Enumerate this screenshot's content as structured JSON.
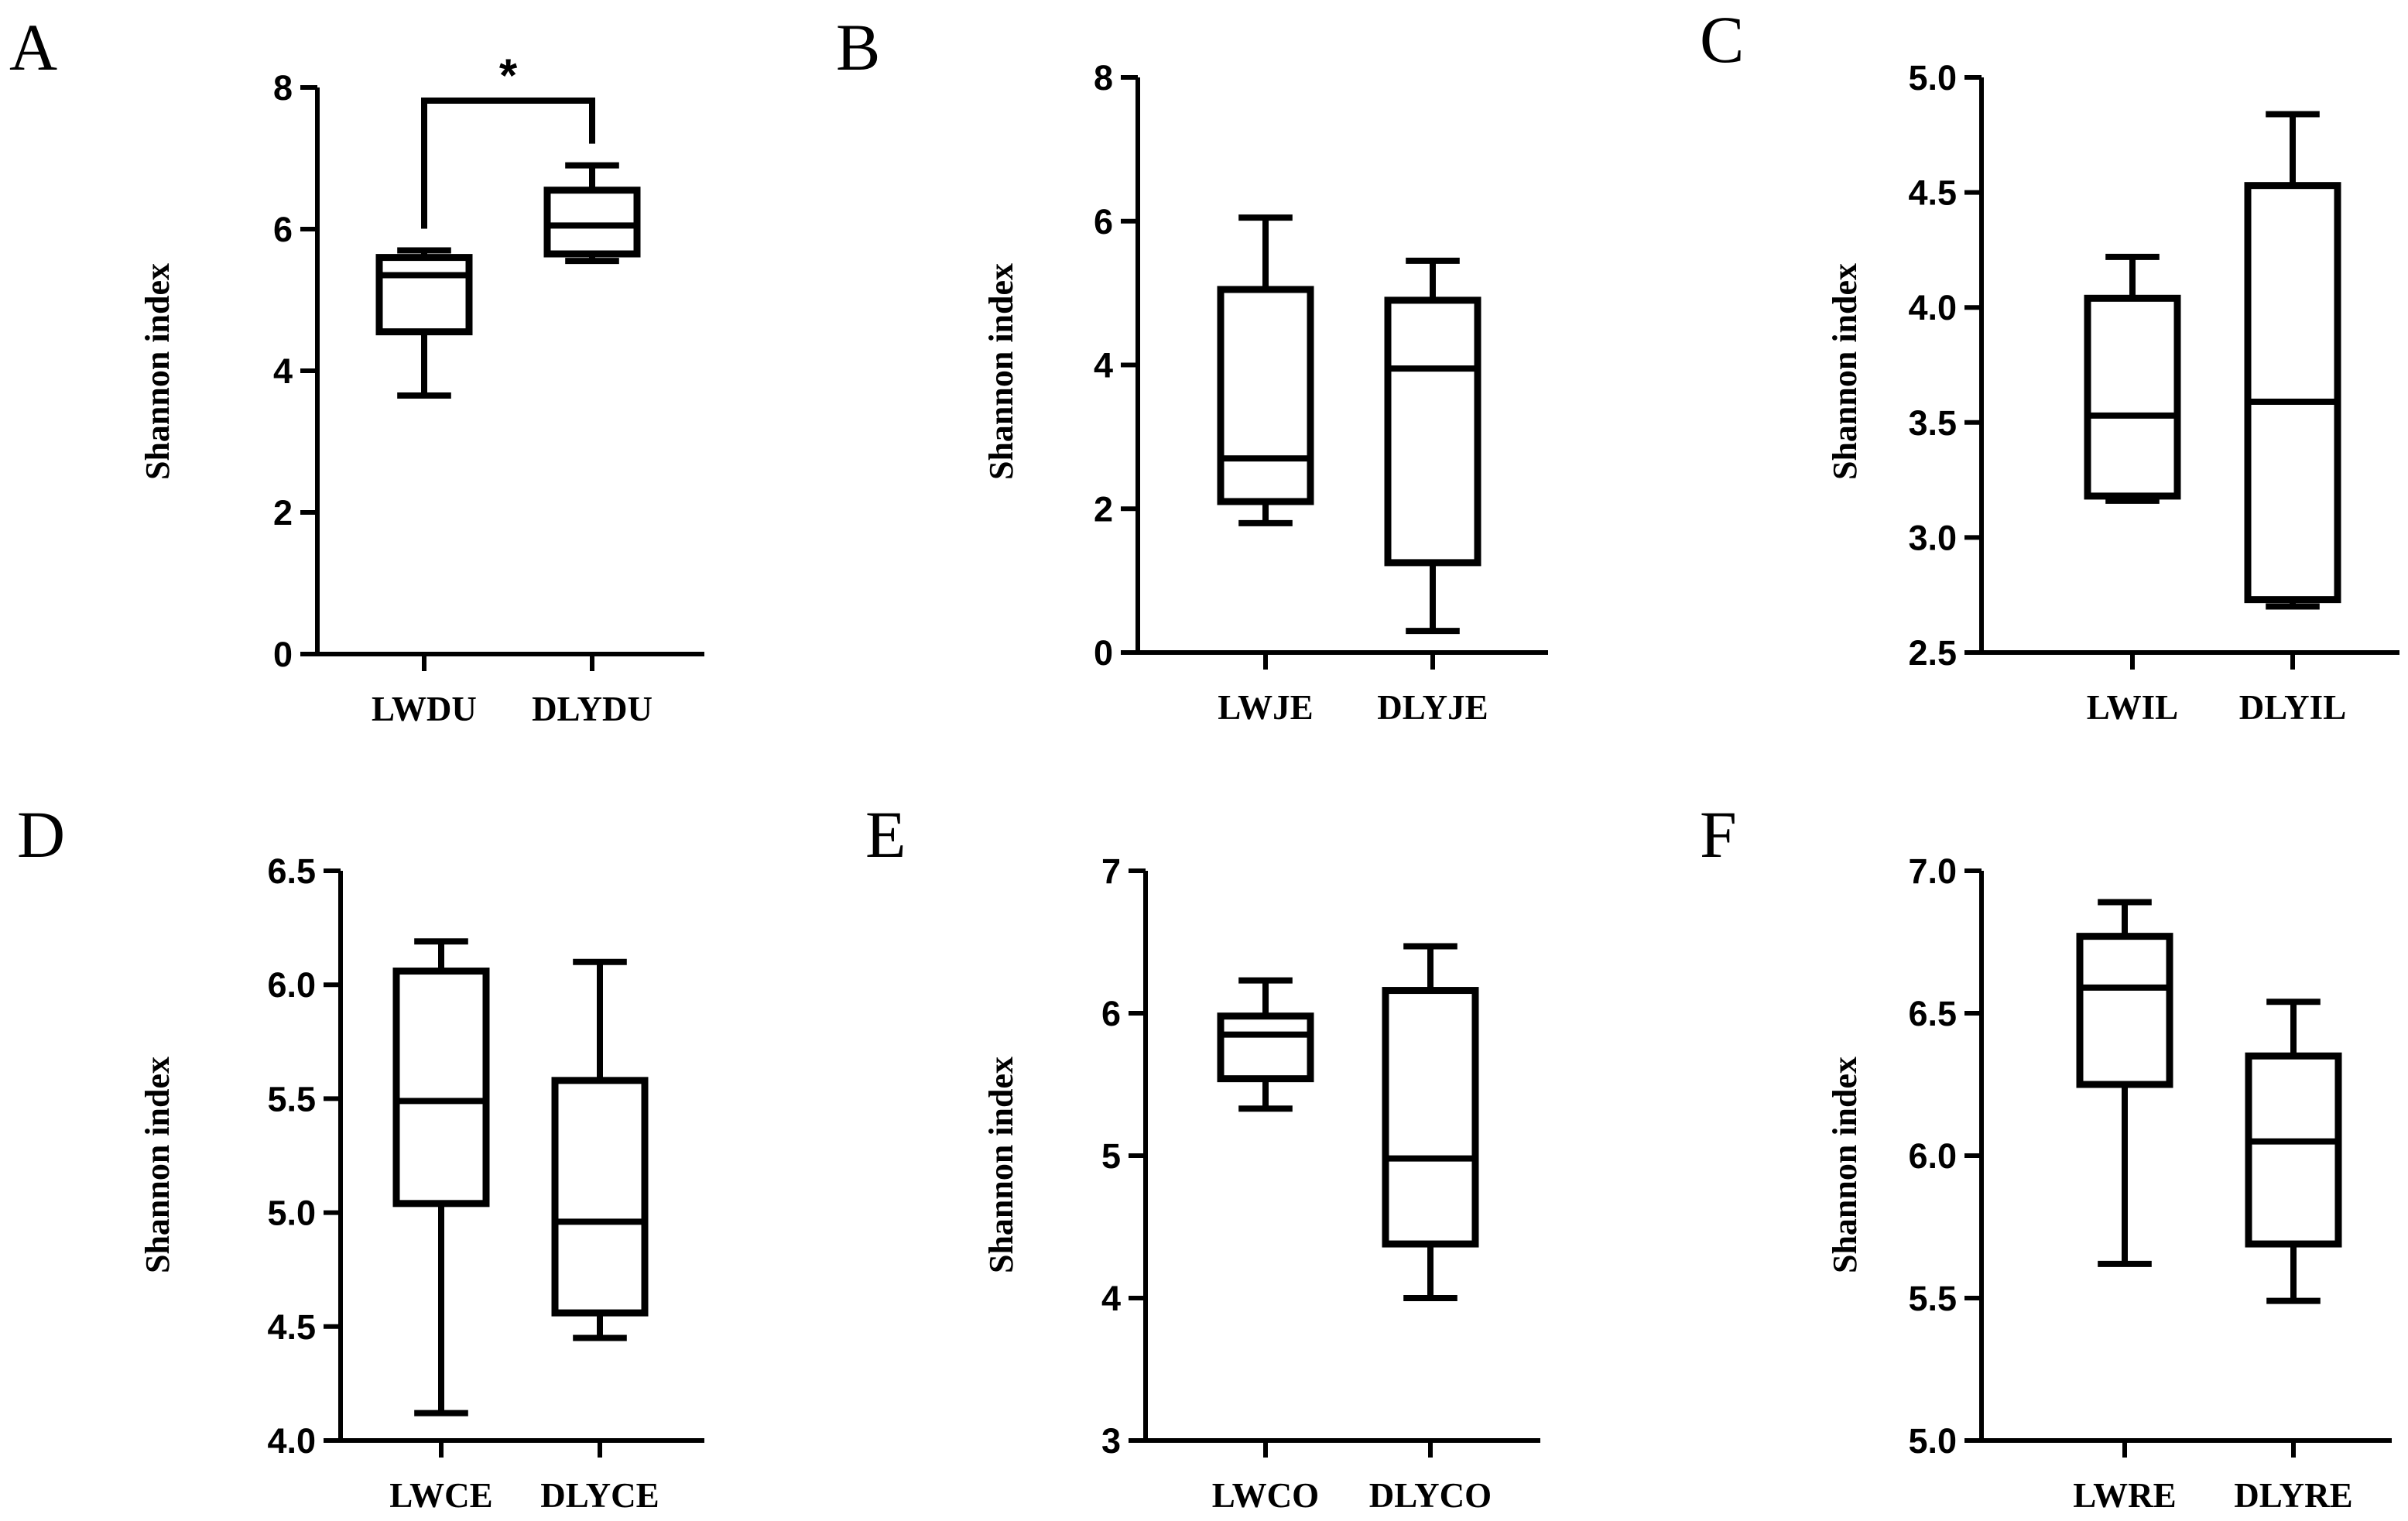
{
  "chart_data": [
    {
      "type": "box",
      "panel": "A",
      "ylabel": "Shannon index",
      "ylim": [
        0,
        8
      ],
      "yticks": [
        "0",
        "2",
        "4",
        "6",
        "8"
      ],
      "categories": [
        "LWDU",
        "DLYDU"
      ],
      "boxes": [
        {
          "min": 3.65,
          "q1": 4.55,
          "median": 5.35,
          "q3": 5.6,
          "max": 5.7
        },
        {
          "min": 5.55,
          "q1": 5.65,
          "median": 6.05,
          "q3": 6.55,
          "max": 6.9
        }
      ],
      "significance": {
        "label": "*",
        "between": [
          0,
          1
        ]
      }
    },
    {
      "type": "box",
      "panel": "B",
      "ylabel": "Shannon index",
      "ylim": [
        0,
        8
      ],
      "yticks": [
        "0",
        "2",
        "4",
        "6",
        "8"
      ],
      "categories": [
        "LWJE",
        "DLYJE"
      ],
      "boxes": [
        {
          "min": 1.8,
          "q1": 2.1,
          "median": 2.7,
          "q3": 5.05,
          "max": 6.05
        },
        {
          "min": 0.3,
          "q1": 1.25,
          "median": 3.95,
          "q3": 4.9,
          "max": 5.45
        }
      ]
    },
    {
      "type": "box",
      "panel": "C",
      "ylabel": "Shannon index",
      "ylim": [
        2.5,
        5.0
      ],
      "yticks": [
        "2.5",
        "3.0",
        "3.5",
        "4.0",
        "4.5",
        "5.0"
      ],
      "categories": [
        "LWIL",
        "DLYIL"
      ],
      "boxes": [
        {
          "min": 3.16,
          "q1": 3.18,
          "median": 3.53,
          "q3": 4.04,
          "max": 4.22
        },
        {
          "min": 2.7,
          "q1": 2.73,
          "median": 3.59,
          "q3": 4.53,
          "max": 4.84
        }
      ]
    },
    {
      "type": "box",
      "panel": "D",
      "ylabel": "Shannon index",
      "ylim": [
        4.0,
        6.5
      ],
      "yticks": [
        "4.0",
        "4.5",
        "5.0",
        "5.5",
        "6.0",
        "6.5"
      ],
      "categories": [
        "LWCE",
        "DLYCE"
      ],
      "boxes": [
        {
          "min": 4.12,
          "q1": 5.04,
          "median": 5.49,
          "q3": 6.06,
          "max": 6.19
        },
        {
          "min": 4.45,
          "q1": 4.56,
          "median": 4.96,
          "q3": 5.58,
          "max": 6.1
        }
      ]
    },
    {
      "type": "box",
      "panel": "E",
      "ylabel": "Shannon index",
      "ylim": [
        3,
        7
      ],
      "yticks": [
        "3",
        "4",
        "5",
        "6",
        "7"
      ],
      "categories": [
        "LWCO",
        "DLYCO"
      ],
      "boxes": [
        {
          "min": 5.33,
          "q1": 5.54,
          "median": 5.85,
          "q3": 5.98,
          "max": 6.23
        },
        {
          "min": 4.0,
          "q1": 4.38,
          "median": 4.98,
          "q3": 6.16,
          "max": 6.47
        }
      ]
    },
    {
      "type": "box",
      "panel": "F",
      "ylabel": "Shannon index",
      "ylim": [
        5.0,
        7.0
      ],
      "yticks": [
        "5.0",
        "5.5",
        "6.0",
        "6.5",
        "7.0"
      ],
      "categories": [
        "LWRE",
        "DLYRE"
      ],
      "boxes": [
        {
          "min": 5.62,
          "q1": 6.25,
          "median": 6.59,
          "q3": 6.77,
          "max": 6.89
        },
        {
          "min": 5.49,
          "q1": 5.69,
          "median": 6.05,
          "q3": 6.35,
          "max": 6.54
        }
      ]
    }
  ]
}
